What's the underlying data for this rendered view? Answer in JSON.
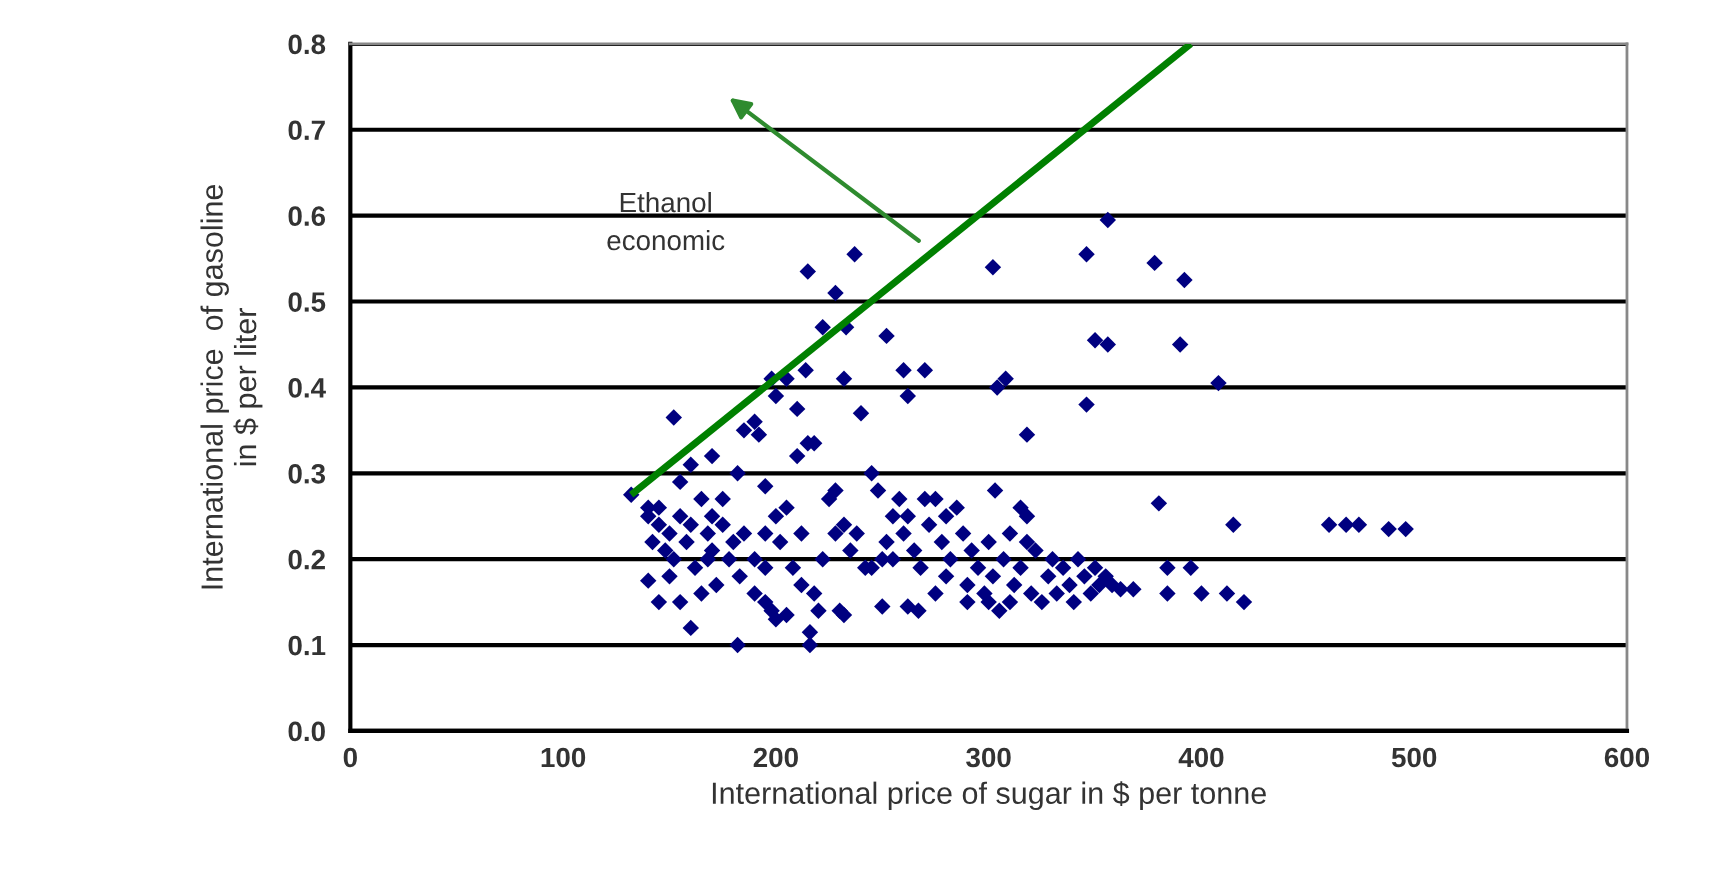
{
  "chart_data": {
    "type": "scatter",
    "xlabel": "International price of sugar in $ per tonne",
    "ylabel": "International price  of gasoline\nin $ per liter",
    "xlim": [
      0,
      600
    ],
    "xticks": [
      0,
      100,
      200,
      300,
      400,
      500,
      600
    ],
    "ylim": [
      0,
      0.8
    ],
    "yticks": [
      {
        "value": 0,
        "label": "0.0"
      },
      0.1,
      0.2,
      0.3,
      0.4,
      0.5,
      0.6,
      0.7,
      0.8
    ],
    "grid": "y",
    "series": [
      {
        "marker": "diamond",
        "color": "#000080",
        "x": [
          215,
          237,
          228,
          222,
          233,
          252,
          260,
          262,
          270,
          240,
          232,
          302,
          346,
          356,
          378,
          392,
          350,
          356,
          390,
          408,
          304,
          308,
          318,
          346,
          380,
          303,
          214,
          205,
          198,
          210,
          200,
          215,
          218,
          210,
          190,
          185,
          192,
          182,
          195,
          152,
          170,
          160,
          155,
          132,
          140,
          415,
          460,
          468,
          474,
          488,
          496,
          412,
          420,
          400,
          395,
          384,
          384,
          182,
          216,
          216,
          220,
          160,
          145,
          155,
          140,
          230,
          232,
          250,
          262,
          267,
          195,
          200,
          205,
          198,
          140,
          142,
          145,
          148,
          150,
          152,
          155,
          158,
          160,
          162,
          165,
          168,
          170,
          172,
          175,
          178,
          180,
          145,
          150,
          165,
          170,
          185,
          190,
          195,
          200,
          202,
          205,
          208,
          212,
          218,
          222,
          225,
          228,
          232,
          235,
          238,
          242,
          245,
          248,
          250,
          252,
          255,
          258,
          260,
          262,
          265,
          268,
          270,
          272,
          275,
          278,
          280,
          282,
          285,
          288,
          290,
          292,
          295,
          298,
          300,
          302,
          305,
          307,
          310,
          312,
          315,
          318,
          320,
          322,
          325,
          328,
          330,
          332,
          335,
          338,
          340,
          342,
          345,
          348,
          350,
          352,
          355,
          358,
          362,
          368,
          310,
          300,
          290,
          280,
          275,
          255,
          245,
          228,
          212,
          195,
          190,
          183,
          175,
          168,
          318,
          315
        ],
        "values": [
          0.535,
          0.555,
          0.51,
          0.47,
          0.47,
          0.46,
          0.42,
          0.39,
          0.42,
          0.37,
          0.41,
          0.54,
          0.555,
          0.595,
          0.545,
          0.525,
          0.455,
          0.45,
          0.45,
          0.405,
          0.4,
          0.41,
          0.345,
          0.38,
          0.265,
          0.28,
          0.42,
          0.41,
          0.41,
          0.375,
          0.39,
          0.335,
          0.335,
          0.32,
          0.36,
          0.35,
          0.345,
          0.3,
          0.285,
          0.365,
          0.32,
          0.31,
          0.29,
          0.275,
          0.26,
          0.24,
          0.24,
          0.24,
          0.24,
          0.235,
          0.235,
          0.16,
          0.15,
          0.16,
          0.19,
          0.19,
          0.16,
          0.1,
          0.1,
          0.115,
          0.14,
          0.12,
          0.15,
          0.15,
          0.175,
          0.14,
          0.135,
          0.145,
          0.145,
          0.14,
          0.15,
          0.13,
          0.135,
          0.14,
          0.25,
          0.22,
          0.24,
          0.21,
          0.23,
          0.2,
          0.25,
          0.22,
          0.24,
          0.19,
          0.27,
          0.23,
          0.21,
          0.17,
          0.24,
          0.2,
          0.22,
          0.26,
          0.18,
          0.16,
          0.25,
          0.23,
          0.2,
          0.23,
          0.25,
          0.22,
          0.26,
          0.19,
          0.17,
          0.16,
          0.2,
          0.27,
          0.28,
          0.24,
          0.21,
          0.23,
          0.19,
          0.3,
          0.28,
          0.2,
          0.22,
          0.25,
          0.27,
          0.23,
          0.25,
          0.21,
          0.19,
          0.27,
          0.24,
          0.27,
          0.22,
          0.25,
          0.2,
          0.26,
          0.23,
          0.17,
          0.21,
          0.19,
          0.16,
          0.22,
          0.18,
          0.14,
          0.2,
          0.23,
          0.17,
          0.19,
          0.25,
          0.16,
          0.21,
          0.15,
          0.18,
          0.2,
          0.16,
          0.19,
          0.17,
          0.15,
          0.2,
          0.18,
          0.16,
          0.19,
          0.17,
          0.18,
          0.17,
          0.165,
          0.165,
          0.15,
          0.15,
          0.15,
          0.18,
          0.16,
          0.2,
          0.19,
          0.23,
          0.23,
          0.19,
          0.16,
          0.18,
          0.27,
          0.2,
          0.22,
          0.26
        ]
      },
      {
        "type": "line",
        "color": "#008000",
        "x": [
          132,
          395
        ],
        "values": [
          0.275,
          0.8
        ]
      }
    ],
    "annotations": [
      "Ethanol\neconomic"
    ]
  }
}
